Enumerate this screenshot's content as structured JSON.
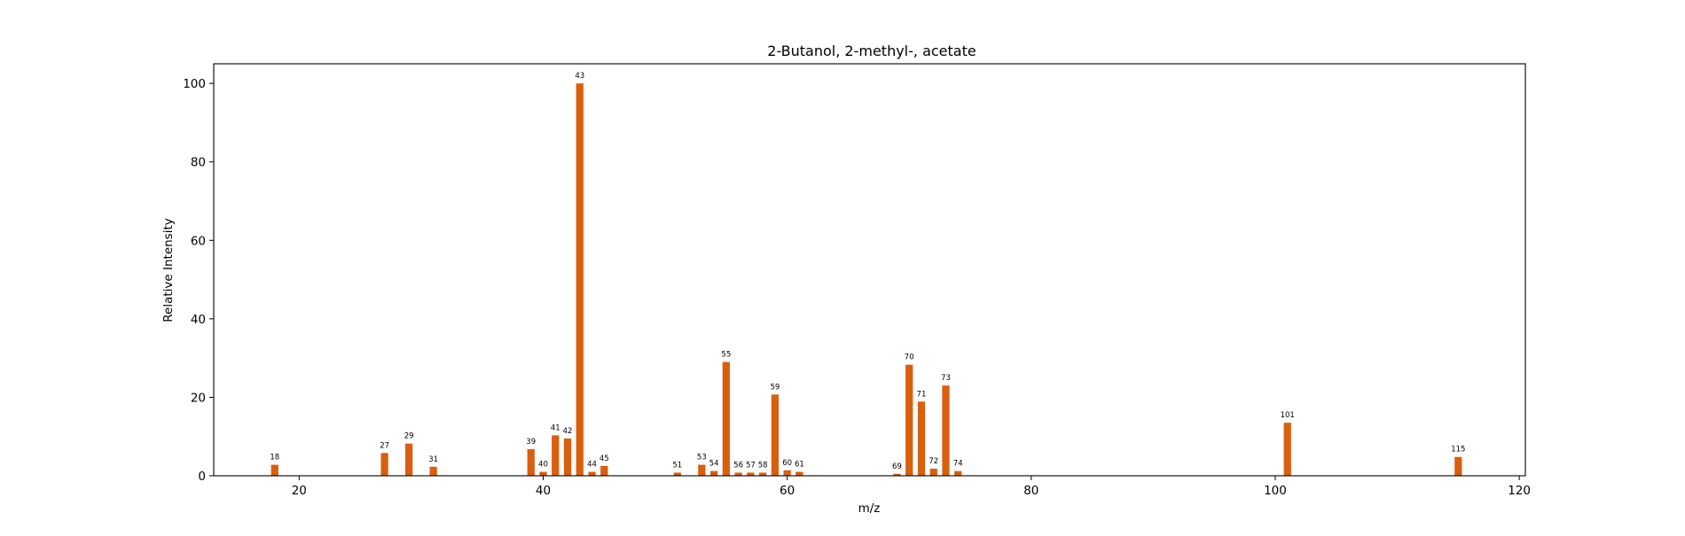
{
  "chart_data": {
    "type": "bar",
    "title": "2-Butanol, 2-methyl-, acetate",
    "xlabel": "m/z",
    "ylabel": "Relative Intensity",
    "xlim": [
      13,
      120.5
    ],
    "ylim": [
      0,
      105
    ],
    "xticks": [
      20,
      40,
      60,
      80,
      100,
      120
    ],
    "yticks": [
      0,
      20,
      40,
      60,
      80,
      100
    ],
    "bar_color": "#d95f0e",
    "grid": false,
    "legend": "none",
    "points": [
      {
        "x": 18,
        "y": 2.8
      },
      {
        "x": 27,
        "y": 5.8
      },
      {
        "x": 29,
        "y": 8.2
      },
      {
        "x": 31,
        "y": 2.3
      },
      {
        "x": 39,
        "y": 6.8
      },
      {
        "x": 40,
        "y": 1.0
      },
      {
        "x": 41,
        "y": 10.3
      },
      {
        "x": 42,
        "y": 9.5
      },
      {
        "x": 43,
        "y": 100.0
      },
      {
        "x": 44,
        "y": 1.0
      },
      {
        "x": 45,
        "y": 2.5
      },
      {
        "x": 51,
        "y": 0.8
      },
      {
        "x": 53,
        "y": 2.8
      },
      {
        "x": 54,
        "y": 1.2
      },
      {
        "x": 55,
        "y": 29.0
      },
      {
        "x": 56,
        "y": 0.8
      },
      {
        "x": 57,
        "y": 0.8
      },
      {
        "x": 58,
        "y": 0.8
      },
      {
        "x": 59,
        "y": 20.7
      },
      {
        "x": 60,
        "y": 1.4
      },
      {
        "x": 61,
        "y": 1.0
      },
      {
        "x": 69,
        "y": 0.5
      },
      {
        "x": 70,
        "y": 28.3
      },
      {
        "x": 71,
        "y": 18.9
      },
      {
        "x": 72,
        "y": 1.8
      },
      {
        "x": 73,
        "y": 23.0
      },
      {
        "x": 74,
        "y": 1.2
      },
      {
        "x": 101,
        "y": 13.5
      },
      {
        "x": 115,
        "y": 4.8
      }
    ]
  }
}
